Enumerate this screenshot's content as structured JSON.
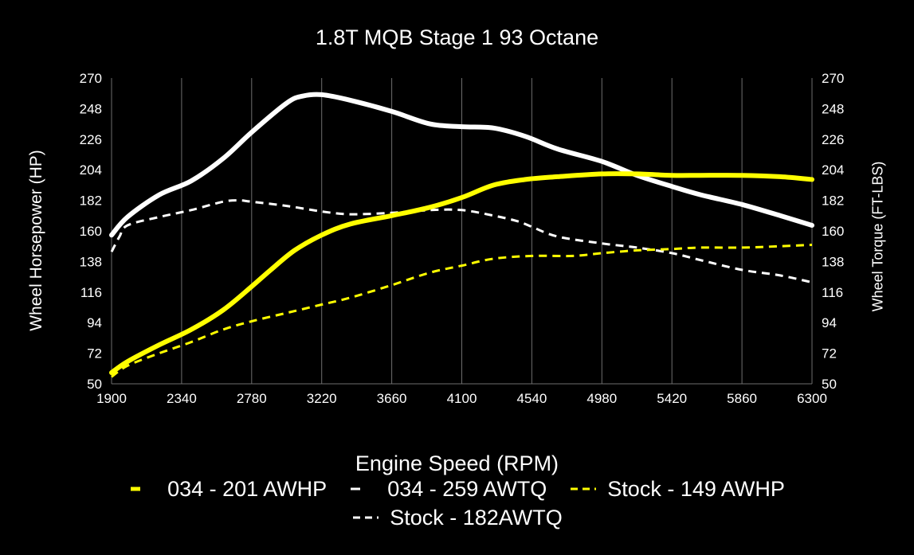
{
  "chart_data": {
    "type": "line",
    "title": "1.8T MQB Stage 1 93 Octane",
    "xlabel": "Engine Speed (RPM)",
    "ylabel_left": "Wheel Horsepower (HP)",
    "ylabel_right": "Wheel Torque (FT-LBS)",
    "xlim": [
      1900,
      6300
    ],
    "ylim": [
      50,
      270
    ],
    "y2lim": [
      50,
      270
    ],
    "x_ticks": [
      1900,
      2340,
      2780,
      3220,
      3660,
      4100,
      4540,
      4980,
      5420,
      5860,
      6300
    ],
    "y_ticks": [
      50,
      72,
      94,
      116,
      138,
      160,
      182,
      204,
      226,
      248,
      270
    ],
    "grid": "vertical",
    "legend_position": "bottom",
    "series": [
      {
        "name": "034 - 201 AWHP",
        "color": "#ffff00",
        "style": "solid-thick",
        "x": [
          1900,
          2000,
          2200,
          2400,
          2600,
          2780,
          2900,
          3050,
          3220,
          3400,
          3660,
          3900,
          4100,
          4300,
          4500,
          4700,
          4980,
          5200,
          5420,
          5600,
          5860,
          6100,
          6300
        ],
        "y": [
          58,
          66,
          78,
          89,
          103,
          120,
          132,
          146,
          157,
          165,
          171,
          177,
          184,
          193,
          197,
          199,
          201,
          201,
          200,
          200,
          200,
          199,
          197
        ]
      },
      {
        "name": "034 - 259 AWTQ",
        "color": "#ffffff",
        "style": "solid-thick",
        "x": [
          1900,
          2000,
          2200,
          2400,
          2600,
          2780,
          3000,
          3100,
          3220,
          3400,
          3660,
          3900,
          4100,
          4300,
          4500,
          4700,
          4980,
          5200,
          5420,
          5600,
          5860,
          6100,
          6300
        ],
        "y": [
          157,
          170,
          186,
          196,
          212,
          231,
          252,
          257,
          258,
          254,
          246,
          237,
          235,
          234,
          228,
          219,
          210,
          200,
          192,
          186,
          179,
          171,
          164
        ]
      },
      {
        "name": "Stock - 149 AWHP",
        "color": "#ffff00",
        "style": "dashed",
        "x": [
          1900,
          2000,
          2200,
          2400,
          2600,
          2780,
          3000,
          3220,
          3400,
          3660,
          3900,
          4100,
          4300,
          4540,
          4800,
          4980,
          5200,
          5420,
          5600,
          5860,
          6100,
          6300
        ],
        "y": [
          55,
          63,
          72,
          80,
          89,
          95,
          101,
          107,
          112,
          121,
          130,
          135,
          140,
          142,
          142,
          144,
          146,
          147,
          148,
          148,
          149,
          150
        ]
      },
      {
        "name": "Stock - 182AWTQ",
        "color": "#ffffff",
        "style": "dashed",
        "x": [
          1900,
          1950,
          2000,
          2200,
          2400,
          2600,
          2700,
          2780,
          3000,
          3220,
          3400,
          3660,
          3900,
          4100,
          4300,
          4450,
          4540,
          4700,
          4980,
          5200,
          5420,
          5600,
          5860,
          6100,
          6300
        ],
        "y": [
          145,
          156,
          164,
          170,
          175,
          181,
          182,
          181,
          178,
          174,
          172,
          173,
          175,
          175,
          171,
          167,
          163,
          156,
          151,
          148,
          144,
          139,
          132,
          128,
          123
        ]
      }
    ]
  }
}
